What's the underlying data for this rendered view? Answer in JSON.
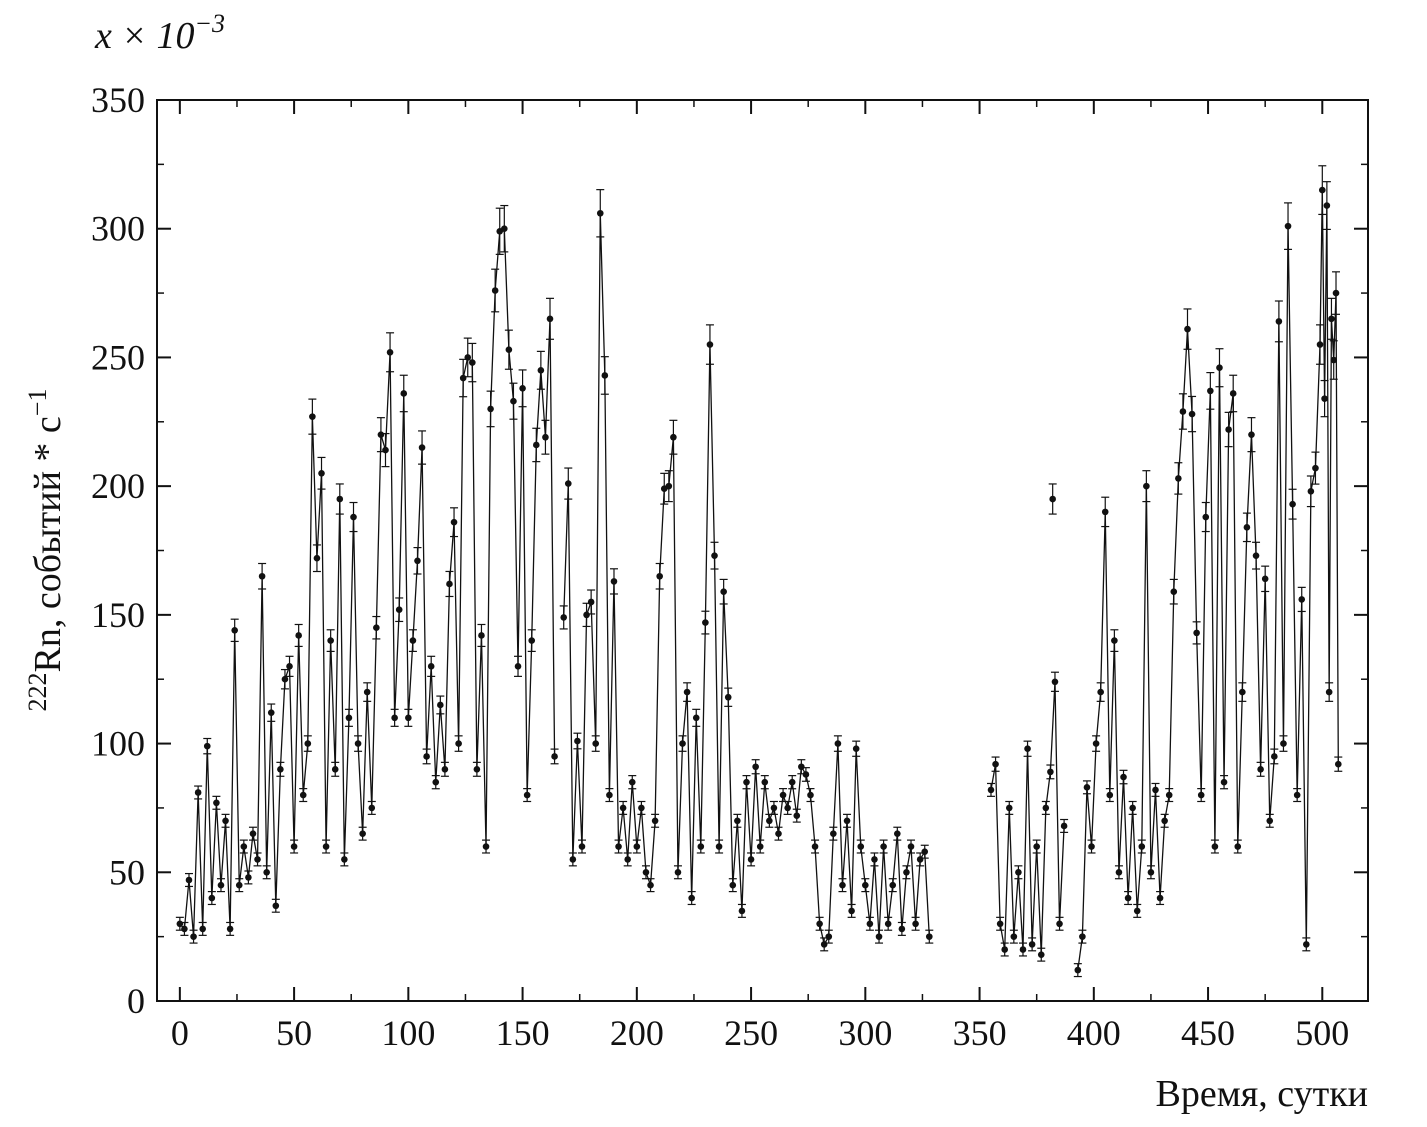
{
  "chart_data": {
    "type": "scatter",
    "title": "",
    "multiplier_label": {
      "base": "x × 10",
      "exponent": "−3"
    },
    "xlabel": "Время, сутки",
    "ylabel": {
      "superscript": "222",
      "text": "Rn, событий * с",
      "exponent": "−1"
    },
    "xlim": [
      -10,
      520
    ],
    "ylim": [
      0,
      350
    ],
    "xticks": [
      0,
      50,
      100,
      150,
      200,
      250,
      300,
      350,
      400,
      450,
      500
    ],
    "yticks": [
      0,
      50,
      100,
      150,
      200,
      250,
      300,
      350
    ],
    "grid": false,
    "connected": true,
    "error_bars": true,
    "color": "#111111",
    "series": [
      {
        "points": [
          [
            0,
            30
          ],
          [
            2,
            28
          ],
          [
            4,
            47
          ],
          [
            6,
            25
          ],
          [
            8,
            81
          ],
          [
            10,
            28
          ],
          [
            12,
            99
          ],
          [
            14,
            40
          ],
          [
            16,
            77
          ],
          [
            18,
            45
          ],
          [
            20,
            70
          ],
          [
            22,
            28
          ],
          [
            24,
            144
          ],
          [
            26,
            45
          ],
          [
            28,
            60
          ],
          [
            30,
            48
          ],
          [
            32,
            65
          ],
          [
            34,
            55
          ],
          [
            36,
            165
          ],
          [
            38,
            50
          ],
          [
            40,
            112
          ],
          [
            42,
            37
          ],
          [
            44,
            90
          ],
          [
            46,
            125
          ],
          [
            48,
            130
          ],
          [
            50,
            60
          ],
          [
            52,
            142
          ],
          [
            54,
            80
          ],
          [
            56,
            100
          ],
          [
            58,
            227
          ],
          [
            60,
            172
          ],
          [
            62,
            205
          ],
          [
            64,
            60
          ],
          [
            66,
            140
          ],
          [
            68,
            90
          ],
          [
            70,
            195
          ],
          [
            72,
            55
          ],
          [
            74,
            110
          ],
          [
            76,
            188
          ],
          [
            78,
            100
          ],
          [
            80,
            65
          ],
          [
            82,
            120
          ],
          [
            84,
            75
          ],
          [
            86,
            145
          ],
          [
            88,
            220
          ],
          [
            90,
            214
          ],
          [
            92,
            252
          ],
          [
            94,
            110
          ],
          [
            96,
            152
          ],
          [
            98,
            236
          ],
          [
            100,
            110
          ],
          [
            102,
            140
          ],
          [
            104,
            171
          ],
          [
            106,
            215
          ],
          [
            108,
            95
          ],
          [
            110,
            130
          ],
          [
            112,
            85
          ],
          [
            114,
            115
          ],
          [
            116,
            90
          ],
          [
            118,
            162
          ],
          [
            120,
            186
          ],
          [
            122,
            100
          ],
          [
            124,
            242
          ],
          [
            126,
            250
          ],
          [
            128,
            248
          ],
          [
            130,
            90
          ],
          [
            132,
            142
          ],
          [
            134,
            60
          ],
          [
            136,
            230
          ],
          [
            138,
            276
          ],
          [
            140,
            299
          ],
          [
            142,
            300
          ],
          [
            144,
            253
          ],
          [
            146,
            233
          ],
          [
            148,
            130
          ],
          [
            150,
            238
          ],
          [
            152,
            80
          ],
          [
            154,
            140
          ],
          [
            156,
            216
          ],
          [
            158,
            245
          ],
          [
            160,
            219
          ],
          [
            162,
            265
          ],
          [
            164,
            95
          ]
        ]
      },
      {
        "points": [
          [
            168,
            149
          ],
          [
            170,
            201
          ],
          [
            172,
            55
          ],
          [
            174,
            101
          ],
          [
            176,
            60
          ],
          [
            178,
            150
          ],
          [
            180,
            155
          ],
          [
            182,
            100
          ],
          [
            184,
            306
          ],
          [
            186,
            243
          ],
          [
            188,
            80
          ],
          [
            190,
            163
          ],
          [
            192,
            60
          ],
          [
            194,
            75
          ],
          [
            196,
            55
          ],
          [
            198,
            85
          ],
          [
            200,
            60
          ],
          [
            202,
            75
          ],
          [
            204,
            50
          ],
          [
            206,
            45
          ],
          [
            208,
            70
          ],
          [
            210,
            165
          ],
          [
            212,
            199
          ],
          [
            214,
            200
          ],
          [
            216,
            219
          ],
          [
            218,
            50
          ],
          [
            220,
            100
          ],
          [
            222,
            120
          ],
          [
            224,
            40
          ],
          [
            226,
            110
          ],
          [
            228,
            60
          ],
          [
            230,
            147
          ],
          [
            232,
            255
          ],
          [
            234,
            173
          ],
          [
            236,
            60
          ],
          [
            238,
            159
          ],
          [
            240,
            118
          ],
          [
            242,
            45
          ],
          [
            244,
            70
          ],
          [
            246,
            35
          ],
          [
            248,
            85
          ],
          [
            250,
            55
          ],
          [
            252,
            91
          ],
          [
            254,
            60
          ],
          [
            256,
            85
          ],
          [
            258,
            70
          ],
          [
            260,
            75
          ],
          [
            262,
            65
          ],
          [
            264,
            80
          ],
          [
            266,
            75
          ],
          [
            268,
            85
          ],
          [
            270,
            72
          ],
          [
            272,
            91
          ],
          [
            274,
            88
          ],
          [
            276,
            80
          ],
          [
            278,
            60
          ],
          [
            280,
            30
          ],
          [
            282,
            22
          ],
          [
            284,
            25
          ],
          [
            286,
            65
          ],
          [
            288,
            100
          ],
          [
            290,
            45
          ],
          [
            292,
            70
          ],
          [
            294,
            35
          ],
          [
            296,
            98
          ],
          [
            298,
            60
          ],
          [
            300,
            45
          ],
          [
            302,
            30
          ],
          [
            304,
            55
          ],
          [
            306,
            25
          ],
          [
            308,
            60
          ],
          [
            310,
            30
          ],
          [
            312,
            45
          ],
          [
            314,
            65
          ],
          [
            316,
            28
          ],
          [
            318,
            50
          ],
          [
            320,
            60
          ],
          [
            322,
            30
          ],
          [
            324,
            55
          ],
          [
            326,
            58
          ],
          [
            328,
            25
          ]
        ]
      },
      {
        "points": [
          [
            355,
            82
          ],
          [
            357,
            92
          ],
          [
            359,
            30
          ],
          [
            361,
            20
          ],
          [
            363,
            75
          ],
          [
            365,
            25
          ],
          [
            367,
            50
          ],
          [
            369,
            20
          ],
          [
            371,
            98
          ],
          [
            373,
            22
          ],
          [
            375,
            60
          ],
          [
            377,
            18
          ],
          [
            379,
            75
          ],
          [
            381,
            89
          ],
          [
            383,
            124
          ],
          [
            385,
            30
          ],
          [
            387,
            68
          ]
        ]
      },
      {
        "points": [
          [
            393,
            12
          ],
          [
            395,
            25
          ],
          [
            397,
            83
          ],
          [
            399,
            60
          ],
          [
            401,
            100
          ],
          [
            403,
            120
          ],
          [
            405,
            190
          ],
          [
            407,
            80
          ],
          [
            409,
            140
          ],
          [
            411,
            50
          ],
          [
            413,
            87
          ],
          [
            415,
            40
          ],
          [
            417,
            75
          ],
          [
            419,
            35
          ],
          [
            421,
            60
          ],
          [
            423,
            200
          ],
          [
            425,
            50
          ],
          [
            427,
            82
          ],
          [
            429,
            40
          ],
          [
            431,
            70
          ],
          [
            433,
            80
          ],
          [
            435,
            159
          ],
          [
            437,
            203
          ],
          [
            439,
            229
          ],
          [
            441,
            261
          ],
          [
            443,
            228
          ],
          [
            445,
            143
          ],
          [
            447,
            80
          ],
          [
            449,
            188
          ],
          [
            451,
            237
          ],
          [
            453,
            60
          ],
          [
            455,
            246
          ],
          [
            457,
            85
          ],
          [
            459,
            222
          ],
          [
            461,
            236
          ],
          [
            463,
            60
          ],
          [
            465,
            120
          ],
          [
            467,
            184
          ],
          [
            469,
            220
          ],
          [
            471,
            173
          ],
          [
            473,
            90
          ],
          [
            475,
            164
          ],
          [
            477,
            70
          ],
          [
            479,
            95
          ],
          [
            481,
            264
          ],
          [
            483,
            100
          ],
          [
            485,
            301
          ],
          [
            487,
            193
          ],
          [
            489,
            80
          ],
          [
            491,
            156
          ],
          [
            493,
            22
          ],
          [
            495,
            198
          ],
          [
            497,
            207
          ],
          [
            499,
            255
          ],
          [
            500,
            315
          ],
          [
            501,
            234
          ],
          [
            502,
            309
          ],
          [
            503,
            120
          ],
          [
            504,
            265
          ],
          [
            505,
            249
          ],
          [
            506,
            275
          ],
          [
            507,
            92
          ]
        ]
      }
    ],
    "isolated_points": [
      [
        382,
        195
      ]
    ]
  }
}
